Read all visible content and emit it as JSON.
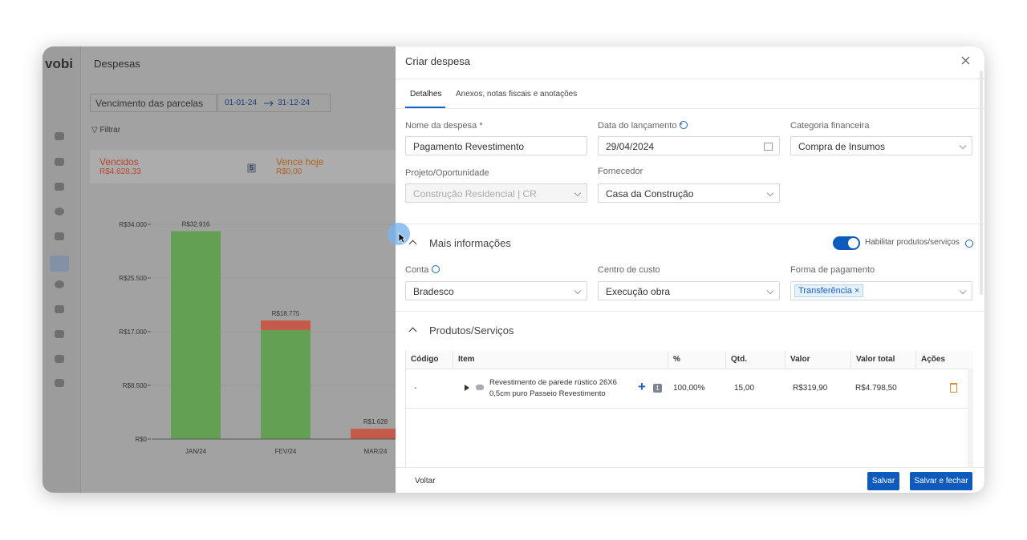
{
  "app": {
    "logo": "vobi",
    "page_title": "Despesas",
    "filter_select": "Vencimento das parcelas",
    "date_from": "01-01-24",
    "date_to": "31-12-24",
    "filter": "Filtrar",
    "summary": [
      {
        "label": "Vencidos",
        "amount": "R$4.628,33",
        "count": "5"
      },
      {
        "label": "Vence hoje",
        "amount": "R$0,00"
      }
    ]
  },
  "chart": {
    "type": "bar",
    "categories": [
      "JAN/24",
      "FEV/24",
      "MAR/24"
    ],
    "series": [
      {
        "color": "#63a054",
        "values": [
          32916,
          17254,
          0
        ]
      },
      {
        "color": "#c65a4a",
        "values": [
          0,
          1521,
          1628
        ]
      }
    ],
    "bar_labels": [
      "R$32.916",
      "R$18.775",
      "R$1.628"
    ],
    "ylim": [
      0,
      34000
    ],
    "yticks": [
      {
        "value": 0,
        "label": "R$0"
      },
      {
        "value": 8500,
        "label": "R$8.500"
      },
      {
        "value": 17000,
        "label": "R$17.000"
      },
      {
        "value": 25500,
        "label": "R$25.500"
      },
      {
        "value": 34000,
        "label": "R$34.000"
      }
    ]
  },
  "modal": {
    "title": "Criar despesa",
    "tabs": [
      "Detalhes",
      "Anexos, notas fiscais e anotações"
    ],
    "fields": [
      {
        "label": "Nome da despesa *",
        "value": "Pagamento Revestimento"
      },
      {
        "label": "Data do lançamento *",
        "value": "29/04/2024"
      },
      {
        "label": "Categoria financeira",
        "value": "Compra de Insumos"
      },
      {
        "label": "Projeto/Oportunidade",
        "value": "Construção Residencial | CR"
      },
      {
        "label": "Fornecedor",
        "value": "Casa da Construção"
      }
    ],
    "more_section": "Mais informações",
    "toggle_label": "Habilitar produtos/serviços",
    "more_fields": [
      {
        "label": "Conta",
        "value": "Bradesco"
      },
      {
        "label": "Centro de custo",
        "value": "Execução obra"
      },
      {
        "label": "Forma de pagamento",
        "value": "Transferência"
      }
    ],
    "products_section": "Produtos/Serviços",
    "table": {
      "columns": [
        "Código",
        "Item",
        "%",
        "Qtd.",
        "Valor",
        "Valor total",
        "Ações"
      ],
      "rows": [
        [
          "-",
          "Revestimento de parede rústico 26X6 0,5cm puro Passeio Revestimento",
          "100,00%",
          "15,00",
          "R$319,90",
          "R$4.798,50"
        ]
      ],
      "item_badge": "1"
    },
    "footer": {
      "back": "Voltar",
      "save": "Salvar",
      "save_close": "Salvar e fechar"
    }
  }
}
